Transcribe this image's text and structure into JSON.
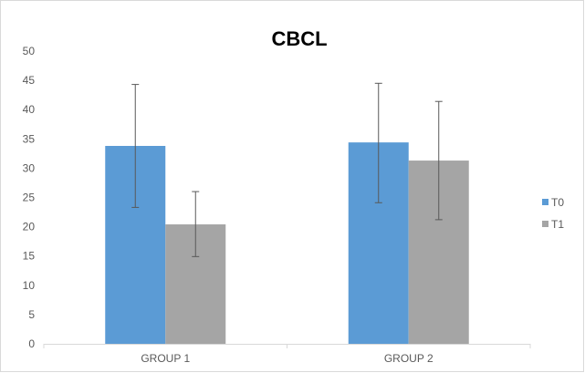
{
  "chart_data": {
    "type": "bar",
    "title": "CBCL",
    "categories": [
      "GROUP 1",
      "GROUP 2"
    ],
    "series": [
      {
        "name": "T0",
        "color": "#5b9bd5",
        "values": [
          33.8,
          34.4
        ],
        "error_low": [
          23.3,
          24.1
        ],
        "error_high": [
          44.3,
          44.5
        ]
      },
      {
        "name": "T1",
        "color": "#a5a5a5",
        "values": [
          20.4,
          31.3
        ],
        "error_low": [
          14.9,
          21.2
        ],
        "error_high": [
          26.0,
          41.4
        ]
      }
    ],
    "ylim": [
      0,
      50
    ],
    "yticks": [
      0,
      5,
      10,
      15,
      20,
      25,
      30,
      35,
      40,
      45,
      50
    ],
    "grid": false,
    "legend_position": "right",
    "error_bar_color": "#595959",
    "axis_color": "#d9d9d9"
  }
}
